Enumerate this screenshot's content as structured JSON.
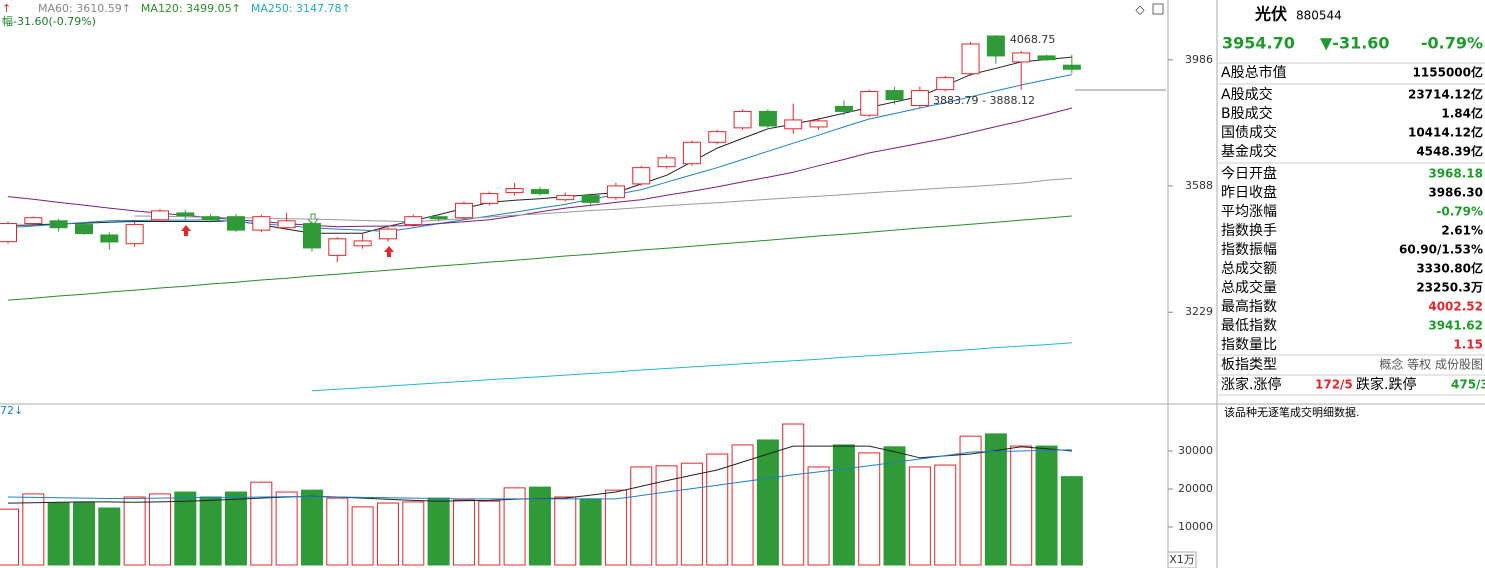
{
  "chart_data": [
    {
      "type": "candlestick",
      "categories": [
        null,
        null,
        null,
        null,
        null,
        null,
        null,
        null,
        null,
        null,
        null,
        null,
        null,
        null,
        null,
        null,
        null,
        null,
        null,
        null,
        null,
        null,
        null,
        null,
        null,
        null,
        null,
        null,
        null,
        null,
        null,
        null,
        null,
        null,
        null,
        null,
        null,
        null,
        null,
        null,
        null,
        null,
        null
      ],
      "open": [
        3425,
        3477,
        3485,
        3474,
        3444,
        3419,
        3488,
        3508,
        3497,
        3497,
        3458,
        3465,
        3477,
        3386,
        3413,
        3433,
        3474,
        3497,
        3494,
        3536,
        3568,
        3577,
        3547,
        3559,
        3553,
        3594,
        3646,
        3655,
        3721,
        3766,
        3818,
        3763,
        3769,
        3834,
        3806,
        3885,
        3837,
        3888,
        3940,
        4066,
        3979,
        3999,
        3968.18
      ],
      "high": [
        3483,
        3497,
        3491,
        3480,
        3452,
        3483,
        3519,
        3517,
        3505,
        3505,
        3503,
        3508,
        3483,
        3438,
        3449,
        3471,
        3503,
        3505,
        3542,
        3571,
        3597,
        3585,
        3568,
        3565,
        3597,
        3649,
        3682,
        3727,
        3760,
        3825,
        3825,
        3843,
        3797,
        3853,
        3888,
        3898,
        3898,
        3933,
        4046,
        4068.75,
        4016,
        4003,
        4002.52
      ],
      "low": [
        3419,
        3471,
        3454,
        3444,
        3402,
        3410,
        3483,
        3488,
        3480,
        3452,
        3452,
        3458,
        3397,
        3367,
        3405,
        3425,
        3468,
        3483,
        3488,
        3530,
        3559,
        3559,
        3542,
        3528,
        3547,
        3588,
        3640,
        3649,
        3715,
        3760,
        3766,
        3748,
        3760,
        3806,
        3800,
        3840,
        3831,
        3882,
        3933,
        3973,
        3888,
        3983,
        3941.62
      ],
      "close": [
        3477,
        3494,
        3465,
        3448,
        3424,
        3474,
        3514,
        3500,
        3488,
        3458,
        3497,
        3485,
        3407,
        3433,
        3427,
        3461,
        3497,
        3491,
        3536,
        3565,
        3580,
        3565,
        3559,
        3539,
        3588,
        3643,
        3673,
        3721,
        3754,
        3818,
        3772,
        3791,
        3788,
        3818,
        3882,
        3856,
        3885,
        3927,
        4039,
        3999,
        4009,
        3986.3,
        3954.7
      ],
      "up_color": "#e3262b",
      "down_color": "#2f9a37",
      "ylim": [
        3001,
        4190
      ],
      "yticks": [
        3986,
        3588,
        3229
      ],
      "log_scale": true,
      "grid": false,
      "series": [
        {
          "color": "#222222",
          "values": [
            3471,
            3473,
            3476,
            3478,
            3481,
            3483,
            3483,
            3483,
            3483,
            3485,
            3473,
            3461,
            3449,
            3449,
            3449,
            3469,
            3485,
            3503,
            3521,
            3539,
            3545,
            3550,
            3556,
            3562,
            3568,
            3594,
            3620,
            3661,
            3703,
            3733,
            3763,
            3778,
            3794,
            3812,
            3831,
            3848,
            3866,
            3901,
            3937,
            3958,
            3979,
            3987,
            3995
          ]
        },
        {
          "color": "#1f7fc4",
          "values": [
            3465,
            3470,
            3475,
            3480,
            3485,
            3486,
            3487,
            3487,
            3488,
            3482,
            3476,
            3471,
            3465,
            3461,
            3458,
            3454,
            3465,
            3477,
            3488,
            3499,
            3510,
            3522,
            3533,
            3548,
            3562,
            3577,
            3599,
            3621,
            3643,
            3668,
            3693,
            3718,
            3743,
            3769,
            3794,
            3811,
            3829,
            3846,
            3865,
            3884,
            3903,
            3920,
            3937
          ]
        },
        {
          "color": "#7a1f7f",
          "values": [
            3556,
            3548,
            3539,
            3531,
            3522,
            3514,
            3507,
            3501,
            3494,
            3488,
            3483,
            3477,
            3472,
            3468,
            3469,
            3470,
            3471,
            3477,
            3482,
            3488,
            3499,
            3511,
            3522,
            3530,
            3539,
            3547,
            3560,
            3572,
            3585,
            3600,
            3614,
            3629,
            3649,
            3668,
            3688,
            3703,
            3718,
            3733,
            3751,
            3770,
            3788,
            3808,
            3829
          ]
        },
        {
          "color": "#999999",
          "values": [
            null,
            null,
            null,
            null,
            null,
            3499,
            3498,
            3497,
            3495,
            3494,
            3493,
            3491,
            3490,
            3488,
            3486,
            3484,
            3482,
            3487,
            3491,
            3496,
            3501,
            3505,
            3510,
            3515,
            3519,
            3524,
            3529,
            3534,
            3538,
            3543,
            3548,
            3553,
            3557,
            3562,
            3567,
            3572,
            3577,
            3582,
            3586,
            3591,
            3596,
            3605,
            3610.59
          ]
        },
        {
          "color": "#2a8a2a",
          "values": [
            3262,
            3267,
            3273,
            3278,
            3284,
            3289,
            3295,
            3300,
            3306,
            3311,
            3317,
            3322,
            3328,
            3333,
            3339,
            3344,
            3350,
            3356,
            3361,
            3367,
            3372,
            3378,
            3384,
            3389,
            3395,
            3401,
            3406,
            3412,
            3418,
            3423,
            3429,
            3435,
            3441,
            3446,
            3452,
            3458,
            3464,
            3469,
            3475,
            3481,
            3487,
            3493,
            3499.05
          ]
        },
        {
          "color": "#22b8c8",
          "values": [
            null,
            null,
            null,
            null,
            null,
            null,
            null,
            null,
            null,
            null,
            null,
            null,
            3024,
            3028,
            3032,
            3036,
            3040,
            3044,
            3048,
            3052,
            3056,
            3060,
            3064,
            3068,
            3072,
            3077,
            3081,
            3085,
            3089,
            3093,
            3097,
            3101,
            3105,
            3110,
            3114,
            3118,
            3122,
            3126,
            3130,
            3135,
            3139,
            3143,
            3147.78
          ]
        }
      ],
      "legend": [
        {
          "text": "MA60: 3610.59↑",
          "color": "#888888"
        },
        {
          "text": "MA120: 3499.05↑",
          "color": "#2a8a2a"
        },
        {
          "text": "MA250: 3147.78↑",
          "color": "#22a8b8"
        }
      ],
      "change_text": "幅-31.60(-0.79%)",
      "annotations": [
        "4068.75",
        "3883.79 - 3888.12"
      ]
    },
    {
      "type": "volume",
      "categories": [
        null,
        null,
        null,
        null,
        null,
        null,
        null,
        null,
        null,
        null,
        null,
        null,
        null,
        null,
        null,
        null,
        null,
        null,
        null,
        null,
        null,
        null,
        null,
        null,
        null,
        null,
        null,
        null,
        null,
        null,
        null,
        null,
        null,
        null,
        null,
        null,
        null,
        null,
        null,
        null,
        null,
        null,
        null
      ],
      "values": [
        14700,
        18700,
        16300,
        16600,
        15000,
        17900,
        18700,
        19200,
        17900,
        19200,
        21800,
        19200,
        19700,
        17600,
        15300,
        16300,
        16600,
        17600,
        17100,
        16800,
        20300,
        20500,
        17900,
        17400,
        19700,
        25800,
        26100,
        26800,
        29200,
        31600,
        32900,
        37100,
        25800,
        31600,
        29500,
        31100,
        25800,
        26300,
        33900,
        34500,
        31300,
        31300,
        23250.3
      ],
      "ylim": [
        0,
        42105
      ],
      "yticks": [
        30000,
        20000,
        10000
      ],
      "unit": "X1万",
      "legend_text": "72↓",
      "series": [
        {
          "color": "#222222",
          "values": [
            16300,
            16400,
            16500,
            16600,
            16600,
            16500,
            16600,
            16800,
            17000,
            17300,
            17600,
            17900,
            18100,
            17900,
            17600,
            17300,
            17000,
            16800,
            16900,
            17000,
            17300,
            17500,
            17600,
            18400,
            19200,
            20700,
            22200,
            23600,
            25000,
            27100,
            29200,
            31300,
            31300,
            31300,
            31300,
            29800,
            28200,
            28700,
            29200,
            30100,
            31100,
            30600,
            30000
          ]
        },
        {
          "color": "#1f7fc4",
          "values": [
            17900,
            17800,
            17700,
            17600,
            17500,
            17500,
            17600,
            17700,
            17800,
            17800,
            17900,
            18000,
            18000,
            17900,
            17800,
            17700,
            17600,
            17500,
            17400,
            17400,
            17400,
            17400,
            17400,
            17400,
            17400,
            18300,
            19200,
            20100,
            21000,
            21900,
            22800,
            23700,
            24500,
            25300,
            26100,
            27000,
            27900,
            28800,
            29700,
            29900,
            30000,
            30200,
            30300
          ]
        }
      ]
    }
  ],
  "panel": {
    "name": "光伏",
    "code": "880544",
    "price": "3954.70",
    "change": "▼-31.60",
    "change_pct": "-0.79%",
    "rows": [
      {
        "label": "A股总市值",
        "value": "1155000亿",
        "color": "#000000"
      },
      {
        "label": "A股成交",
        "value": "23714.12亿",
        "color": "#000000"
      },
      {
        "label": "B股成交",
        "value": "1.84亿",
        "color": "#000000"
      },
      {
        "label": "国债成交",
        "value": "10414.12亿",
        "color": "#000000"
      },
      {
        "label": "基金成交",
        "value": "4548.39亿",
        "color": "#000000"
      },
      {
        "label": "今日开盘",
        "value": "3968.18",
        "color": "#1e9a2c"
      },
      {
        "label": "昨日收盘",
        "value": "3986.30",
        "color": "#000000"
      },
      {
        "label": "平均涨幅",
        "value": "-0.79%",
        "color": "#1e9a2c"
      },
      {
        "label": "指数换手",
        "value": "2.61%",
        "color": "#000000"
      },
      {
        "label": "指数振幅",
        "value": "60.90/1.53%",
        "color": "#000000"
      },
      {
        "label": "总成交额",
        "value": "3330.80亿",
        "color": "#000000"
      },
      {
        "label": "总成交量",
        "value": "23250.3万",
        "color": "#000000"
      },
      {
        "label": "最高指数",
        "value": "4002.52",
        "color": "#e3262b"
      },
      {
        "label": "最低指数",
        "value": "3941.62",
        "color": "#1e9a2c"
      },
      {
        "label": "指数量比",
        "value": "1.15",
        "color": "#e3262b"
      },
      {
        "label": "板指类型",
        "value": "概念 等权 成份股图",
        "color": "#555555"
      }
    ],
    "breadth": [
      {
        "text": "涨家.涨停",
        "color": "#000000"
      },
      {
        "text": "172/5",
        "color": "#e3262b"
      },
      {
        "text": "跌家.跌停",
        "color": "#000000"
      },
      {
        "text": "475/3",
        "color": "#1e9a2c"
      }
    ],
    "note": "该品种无逐笔成交明细数据."
  }
}
